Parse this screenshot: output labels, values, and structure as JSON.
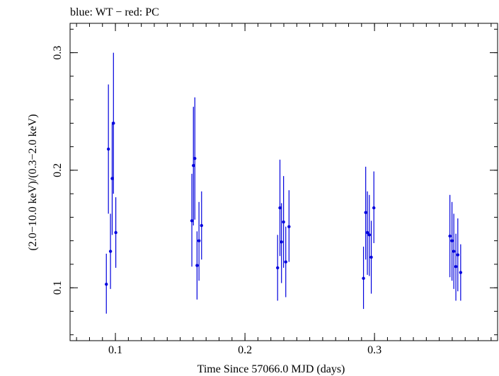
{
  "chart_data": {
    "type": "scatter",
    "title": "blue: WT − red: PC",
    "xlabel": "Time Since 57066.0 MJD (days)",
    "ylabel": "(2.0−10.0 keV)/(0.3−2.0 keV)",
    "xlim": [
      0.065,
      0.395
    ],
    "ylim": [
      0.055,
      0.325
    ],
    "grid": false,
    "xticks_major": [
      0.1,
      0.2,
      0.3
    ],
    "xtick_labels": [
      "0.1",
      "0.2",
      "0.3"
    ],
    "yticks_major": [
      0.1,
      0.2,
      0.3
    ],
    "ytick_labels": [
      "0.1",
      "0.2",
      "0.3"
    ],
    "xticks_minor_step": 0.01,
    "yticks_minor_step": 0.02,
    "series": [
      {
        "name": "WT",
        "color": "#0000dd",
        "points": [
          {
            "x": 0.093,
            "y": 0.103,
            "ylo": 0.078,
            "yhi": 0.129,
            "xerr": 0.0006
          },
          {
            "x": 0.0946,
            "y": 0.218,
            "ylo": 0.163,
            "yhi": 0.273,
            "xerr": 0.0006
          },
          {
            "x": 0.0962,
            "y": 0.131,
            "ylo": 0.099,
            "yhi": 0.163,
            "xerr": 0.0006
          },
          {
            "x": 0.0975,
            "y": 0.193,
            "ylo": 0.145,
            "yhi": 0.241,
            "xerr": 0.0006
          },
          {
            "x": 0.0985,
            "y": 0.24,
            "ylo": 0.18,
            "yhi": 0.3,
            "xerr": 0.0006
          },
          {
            "x": 0.1003,
            "y": 0.147,
            "ylo": 0.117,
            "yhi": 0.177,
            "xerr": 0.0006
          },
          {
            "x": 0.159,
            "y": 0.157,
            "ylo": 0.118,
            "yhi": 0.197,
            "xerr": 0.0006
          },
          {
            "x": 0.1602,
            "y": 0.204,
            "ylo": 0.153,
            "yhi": 0.254,
            "xerr": 0.0006
          },
          {
            "x": 0.1613,
            "y": 0.21,
            "ylo": 0.158,
            "yhi": 0.262,
            "xerr": 0.0006
          },
          {
            "x": 0.163,
            "y": 0.119,
            "ylo": 0.09,
            "yhi": 0.148,
            "xerr": 0.0006
          },
          {
            "x": 0.1645,
            "y": 0.14,
            "ylo": 0.106,
            "yhi": 0.173,
            "xerr": 0.0006
          },
          {
            "x": 0.1665,
            "y": 0.153,
            "ylo": 0.124,
            "yhi": 0.182,
            "xerr": 0.0006
          },
          {
            "x": 0.2252,
            "y": 0.117,
            "ylo": 0.089,
            "yhi": 0.145,
            "xerr": 0.0006
          },
          {
            "x": 0.227,
            "y": 0.168,
            "ylo": 0.127,
            "yhi": 0.209,
            "xerr": 0.0006
          },
          {
            "x": 0.2282,
            "y": 0.139,
            "ylo": 0.104,
            "yhi": 0.172,
            "xerr": 0.0006
          },
          {
            "x": 0.2298,
            "y": 0.156,
            "ylo": 0.117,
            "yhi": 0.195,
            "xerr": 0.0006
          },
          {
            "x": 0.2315,
            "y": 0.122,
            "ylo": 0.092,
            "yhi": 0.152,
            "xerr": 0.0006
          },
          {
            "x": 0.234,
            "y": 0.152,
            "ylo": 0.122,
            "yhi": 0.183,
            "xerr": 0.0006
          },
          {
            "x": 0.2915,
            "y": 0.108,
            "ylo": 0.082,
            "yhi": 0.135,
            "xerr": 0.0006
          },
          {
            "x": 0.2932,
            "y": 0.164,
            "ylo": 0.124,
            "yhi": 0.203,
            "xerr": 0.0006
          },
          {
            "x": 0.2945,
            "y": 0.147,
            "ylo": 0.111,
            "yhi": 0.182,
            "xerr": 0.0006
          },
          {
            "x": 0.296,
            "y": 0.145,
            "ylo": 0.11,
            "yhi": 0.179,
            "xerr": 0.0006
          },
          {
            "x": 0.2975,
            "y": 0.126,
            "ylo": 0.095,
            "yhi": 0.157,
            "xerr": 0.0006
          },
          {
            "x": 0.2995,
            "y": 0.168,
            "ylo": 0.138,
            "yhi": 0.199,
            "xerr": 0.0006
          },
          {
            "x": 0.3582,
            "y": 0.144,
            "ylo": 0.109,
            "yhi": 0.179,
            "xerr": 0.0006
          },
          {
            "x": 0.3598,
            "y": 0.14,
            "ylo": 0.106,
            "yhi": 0.173,
            "xerr": 0.0006
          },
          {
            "x": 0.3612,
            "y": 0.131,
            "ylo": 0.099,
            "yhi": 0.163,
            "xerr": 0.0006
          },
          {
            "x": 0.3628,
            "y": 0.118,
            "ylo": 0.089,
            "yhi": 0.146,
            "xerr": 0.0006
          },
          {
            "x": 0.3643,
            "y": 0.128,
            "ylo": 0.097,
            "yhi": 0.159,
            "xerr": 0.0006
          },
          {
            "x": 0.3665,
            "y": 0.113,
            "ylo": 0.089,
            "yhi": 0.137,
            "xerr": 0.0006
          }
        ]
      }
    ]
  }
}
